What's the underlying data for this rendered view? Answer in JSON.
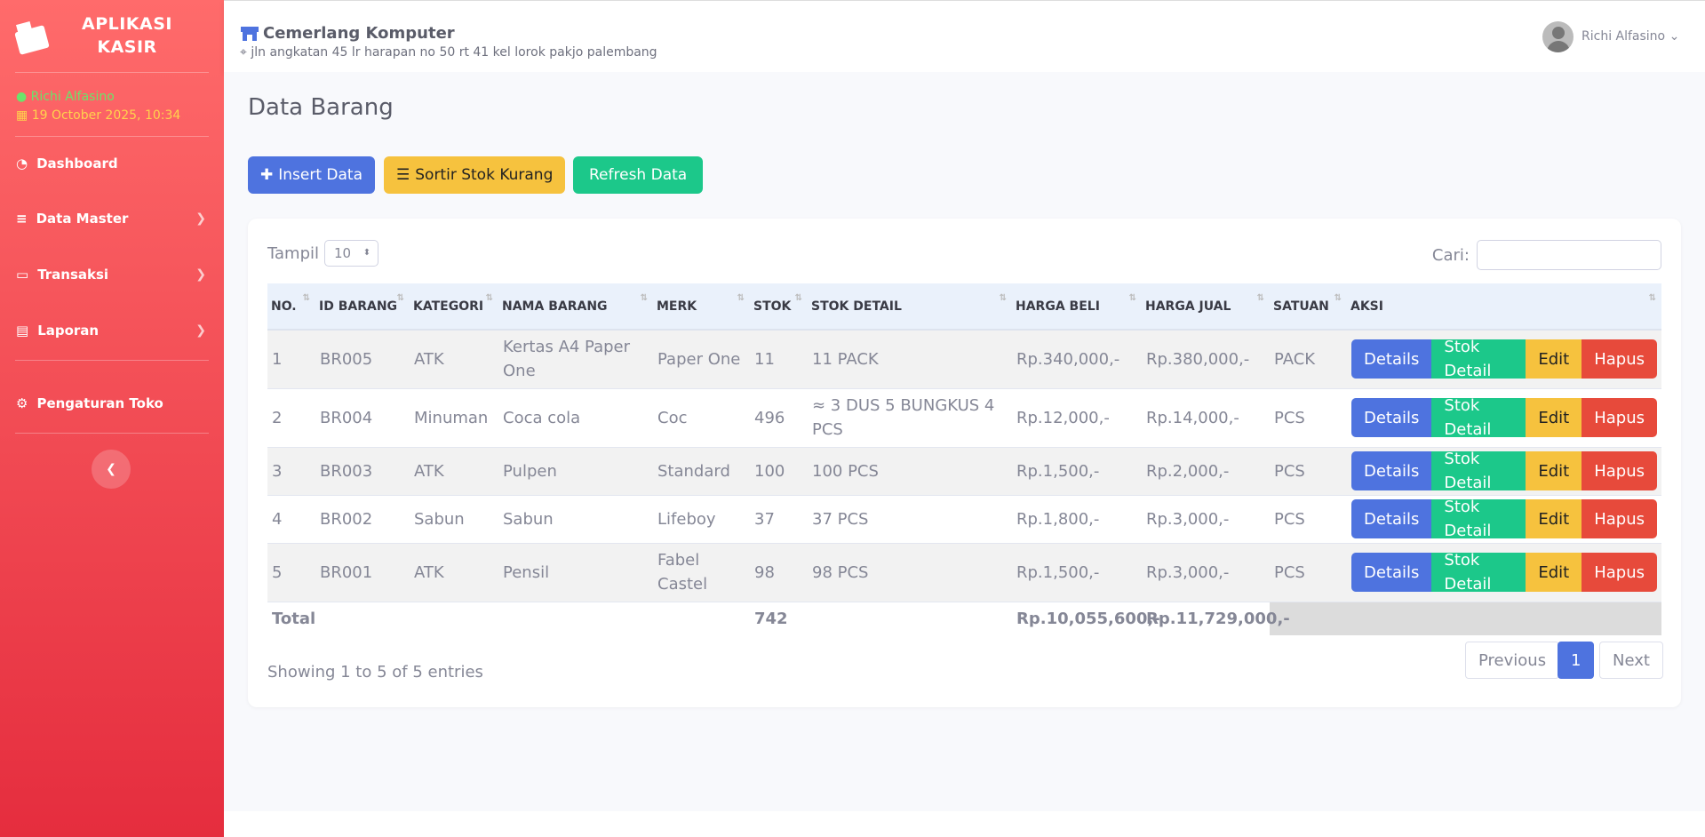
{
  "sidebar": {
    "brand": "APLIKASI KASIR",
    "user": "Richi Alfasino",
    "datetime": "19 October 2025, 10:34",
    "menu": [
      "Dashboard",
      "Data Master",
      "Transaksi",
      "Laporan",
      "Pengaturan Toko"
    ]
  },
  "header": {
    "store": "Cemerlang Komputer",
    "address": "jln angkatan 45 lr harapan no 50 rt 41 kel lorok pakjo palembang",
    "user": "Richi Alfasino"
  },
  "page": {
    "title": "Data Barang",
    "buttons": [
      "Insert Data",
      "Sortir Stok Kurang",
      "Refresh Data"
    ]
  },
  "table": {
    "show_label": "Tampil",
    "page_size": "10",
    "search_label": "Cari:",
    "columns": [
      "NO.",
      "ID BARANG",
      "KATEGORI",
      "NAMA BARANG",
      "MERK",
      "STOK",
      "STOK DETAIL",
      "HARGA BELI",
      "HARGA JUAL",
      "SATUAN",
      "AKSI"
    ],
    "rows": [
      [
        "1",
        "BR005",
        "ATK",
        "Kertas A4 Paper One",
        "Paper One",
        "11",
        "11 PACK",
        "Rp.340,000,-",
        "Rp.380,000,-",
        "PACK"
      ],
      [
        "2",
        "BR004",
        "Minuman",
        "Coca cola",
        "Coc",
        "496",
        "≈ 3 DUS 5 BUNGKUS 4 PCS",
        "Rp.12,000,-",
        "Rp.14,000,-",
        "PCS"
      ],
      [
        "3",
        "BR003",
        "ATK",
        "Pulpen",
        "Standard",
        "100",
        "100 PCS",
        "Rp.1,500,-",
        "Rp.2,000,-",
        "PCS"
      ],
      [
        "4",
        "BR002",
        "Sabun",
        "Sabun",
        "Lifeboy",
        "37",
        "37 PCS",
        "Rp.1,800,-",
        "Rp.3,000,-",
        "PCS"
      ],
      [
        "5",
        "BR001",
        "ATK",
        "Pensil",
        "Fabel Castel",
        "98",
        "98 PCS",
        "Rp.1,500,-",
        "Rp.3,000,-",
        "PCS"
      ]
    ],
    "actions": [
      "Details",
      "Stok Detail",
      "Edit",
      "Hapus"
    ],
    "total": {
      "label": "Total",
      "stok": "742",
      "harga_beli": "Rp.10,055,600,-",
      "harga_jual": "Rp.11,729,000,-"
    },
    "info": "Showing 1 to 5 of 5 entries",
    "pagination": [
      "Previous",
      "1",
      "Next"
    ]
  }
}
